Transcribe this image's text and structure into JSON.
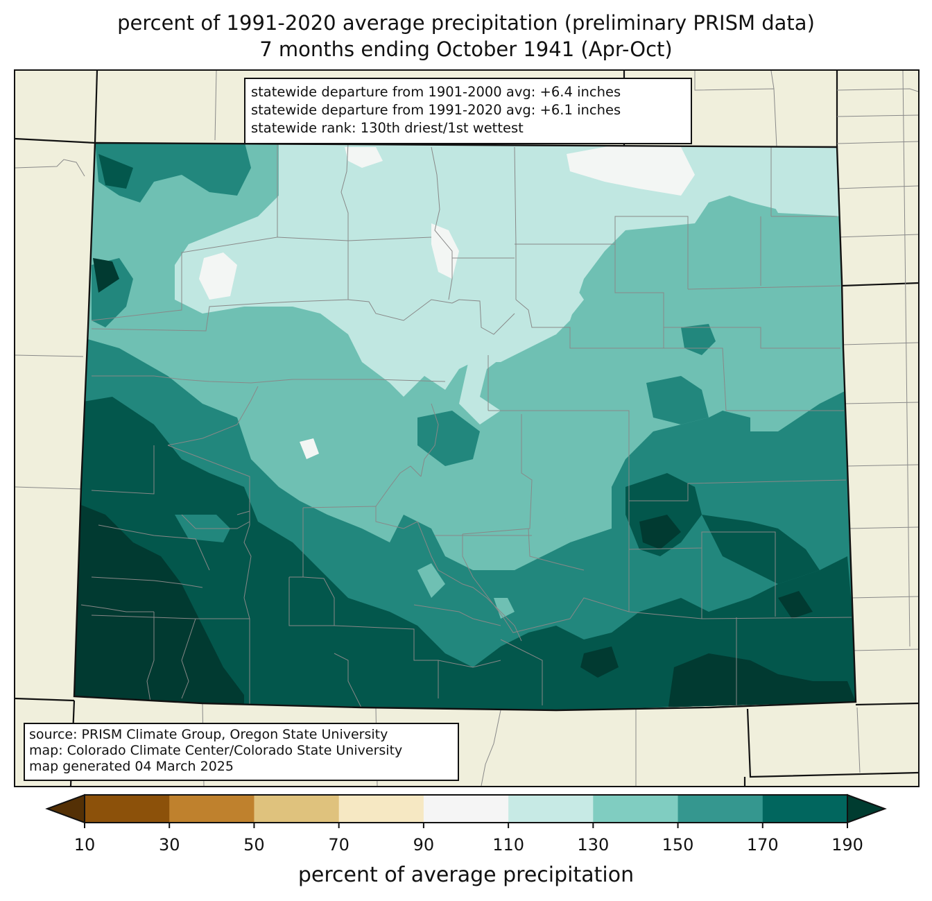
{
  "title": {
    "line1": "percent of 1991-2020 average precipitation (preliminary PRISM data)",
    "line2": "7 months ending October 1941 (Apr-Oct)"
  },
  "stats": {
    "line1": "statewide departure from 1901-2000 avg: +6.4 inches",
    "line2": "statewide departure from 1991-2020 avg: +6.1 inches",
    "line3": "statewide rank: 130th driest/1st wettest"
  },
  "source": {
    "line1": "source: PRISM Climate Group, Oregon State University",
    "line2": "map: Colorado Climate Center/Colorado State University",
    "line3": "map generated 04 March 2025"
  },
  "colorbar": {
    "label": "percent of average precipitation",
    "ticks": [
      "10",
      "30",
      "50",
      "70",
      "90",
      "110",
      "130",
      "150",
      "170",
      "190"
    ],
    "under_color": "#543005",
    "over_color": "#003c30",
    "colors": [
      "#8c510a",
      "#bf812d",
      "#dfc27d",
      "#f6e8c3",
      "#f5f5f5",
      "#c7eae5",
      "#80cdc1",
      "#35978f",
      "#01665e"
    ]
  },
  "map_colors": {
    "background": "#f0efdc",
    "c110_130": "#c0e7e1",
    "c90_110": "#f3f6f4",
    "c130_150": "#6fc0b3",
    "c150_170": "#22877d",
    "c170_190": "#03574c",
    "c190_plus": "#013a31"
  }
}
